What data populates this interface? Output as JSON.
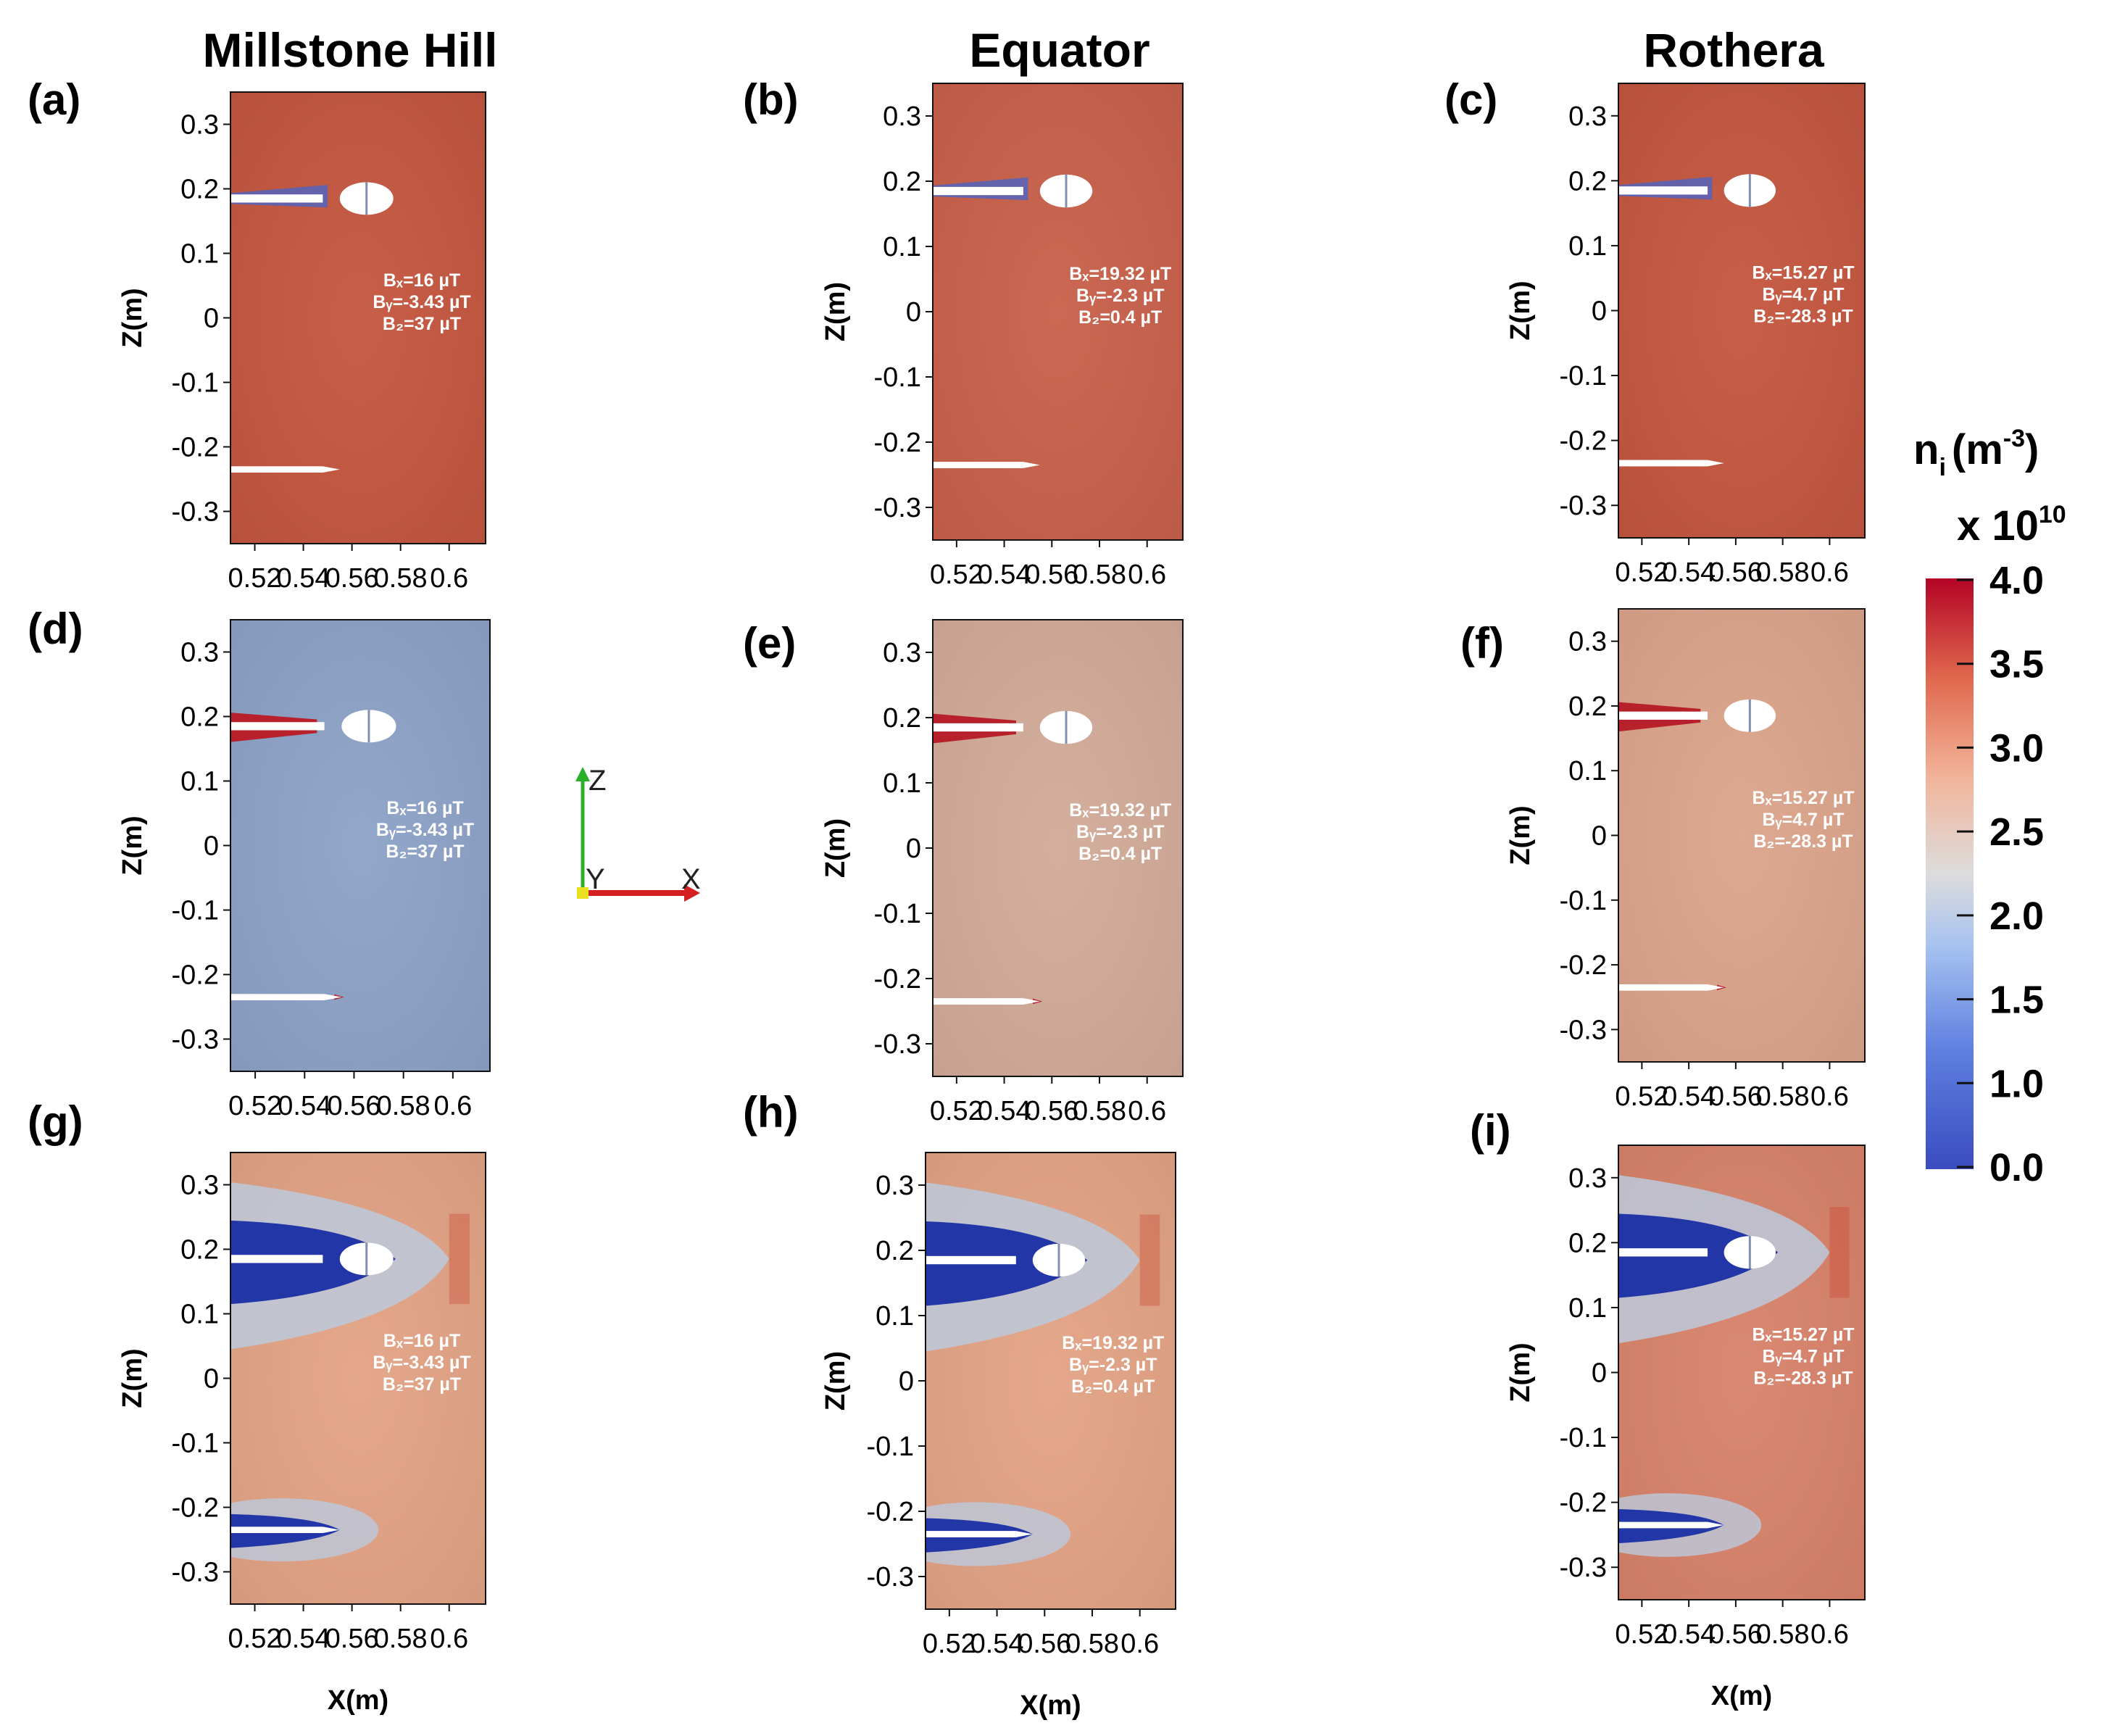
{
  "chart_data": {
    "type": "heatmap",
    "quantity": "ion density",
    "columns": [
      "Millstone Hill",
      "Equator",
      "Rothera"
    ],
    "colorbar": {
      "title_n": "n",
      "title_sub": "i",
      "title_unit_open": "(m",
      "title_unit_sup": "-3",
      "title_unit_close": ")",
      "scale_prefix": "x 10",
      "scale_exp": "10",
      "ticks": [
        "4.0",
        "3.5",
        "3.0",
        "2.5",
        "2.0",
        "1.5",
        "1.0",
        "0.0"
      ],
      "range": [
        0.0,
        4.0
      ],
      "colors": [
        "#3b4cc0",
        "#5e7fe0",
        "#a8c3f0",
        "#dddcdc",
        "#f2b59b",
        "#e0694e",
        "#b40426"
      ]
    },
    "axis_labels": {
      "xlabel": "X(m)",
      "ylabel": "Z(m)"
    },
    "x_ticks": [
      "0.52",
      "0.54",
      "0.56",
      "0.58",
      "0.6"
    ],
    "z_ticks": [
      "0.3",
      "0.2",
      "0.1",
      "0",
      "-0.1",
      "-0.2",
      "-0.3"
    ],
    "xlim": [
      0.51,
      0.615
    ],
    "zlim": [
      -0.35,
      0.35
    ],
    "triad_labels": {
      "z": "Z",
      "y": "Y",
      "x": "X"
    },
    "panels": [
      {
        "label": "(a)",
        "column": "Millstone Hill",
        "bx": "Bₓ=16 µT",
        "by": "Bᵧ=-3.43 µT",
        "bz": "B₂=37 µT",
        "background": "#c4563f",
        "wake": "none",
        "show_xlabel": false
      },
      {
        "label": "(b)",
        "column": "Equator",
        "bx": "Bₓ=19.32 µT",
        "by": "Bᵧ=-2.3 µT",
        "bz": "B₂=0.4 µT",
        "background": "#c8604a",
        "wake": "none",
        "show_xlabel": false
      },
      {
        "label": "(c)",
        "column": "Rothera",
        "bx": "Bₓ=15.27 µT",
        "by": "Bᵧ=4.7 µT",
        "bz": "B₂=-28.3 µT",
        "background": "#c4563f",
        "wake": "none",
        "show_xlabel": false
      },
      {
        "label": "(d)",
        "column": "Millstone Hill",
        "bx": "Bₓ=16 µT",
        "by": "Bᵧ=-3.43 µT",
        "bz": "B₂=37 µT",
        "background": "#8da2c7",
        "wake": "red",
        "show_xlabel": false
      },
      {
        "label": "(e)",
        "column": "Equator",
        "bx": "Bₓ=19.32 µT",
        "by": "Bᵧ=-2.3 µT",
        "bz": "B₂=0.4 µT",
        "background": "#d3ab98",
        "wake": "red",
        "show_xlabel": false
      },
      {
        "label": "(f)",
        "column": "Rothera",
        "bx": "Bₓ=15.27 µT",
        "by": "Bᵧ=4.7 µT",
        "bz": "B₂=-28.3 µT",
        "background": "#dca48b",
        "wake": "red",
        "show_xlabel": false
      },
      {
        "label": "(g)",
        "column": "Millstone Hill",
        "bx": "Bₓ=16 µT",
        "by": "Bᵧ=-3.43 µT",
        "bz": "B₂=37 µT",
        "background": "#e3a385",
        "wake": "blue",
        "show_xlabel": true
      },
      {
        "label": "(h)",
        "column": "Equator",
        "bx": "Bₓ=19.32 µT",
        "by": "Bᵧ=-2.3 µT",
        "bz": "B₂=0.4 µT",
        "background": "#e3a385",
        "wake": "blue",
        "show_xlabel": true
      },
      {
        "label": "(i)",
        "column": "Rothera",
        "bx": "Bₓ=15.27 µT",
        "by": "Bᵧ=4.7 µT",
        "bz": "B₂=-28.3 µT",
        "background": "#d8826a",
        "wake": "blue",
        "show_xlabel": true
      }
    ]
  }
}
